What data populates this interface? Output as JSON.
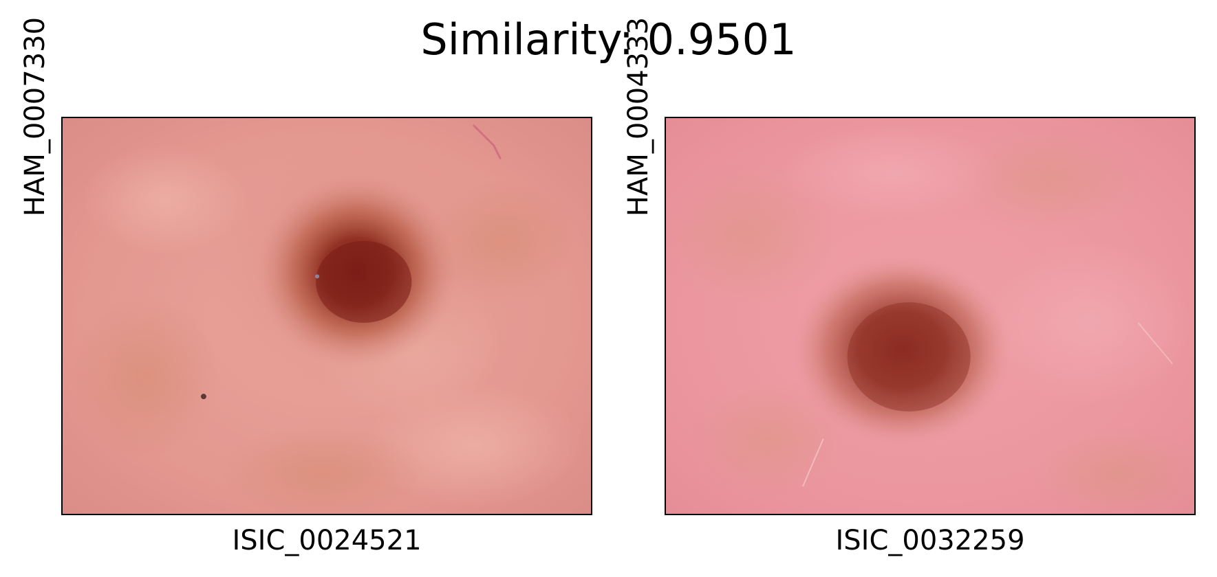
{
  "figure": {
    "title": "Similarity: 0.9501"
  },
  "panels": [
    {
      "xlabel": "ISIC_0024521",
      "ylabel": "HAM_0007330",
      "image": {
        "subject": "dermoscopy-lesion",
        "background_color": "#e79a94",
        "lesion_color": "#8e2a1c"
      }
    },
    {
      "xlabel": "ISIC_0032259",
      "ylabel": "HAM_0004333",
      "image": {
        "subject": "dermoscopy-lesion",
        "background_color": "#ee9aa2",
        "lesion_color": "#9a3a2a"
      }
    }
  ]
}
